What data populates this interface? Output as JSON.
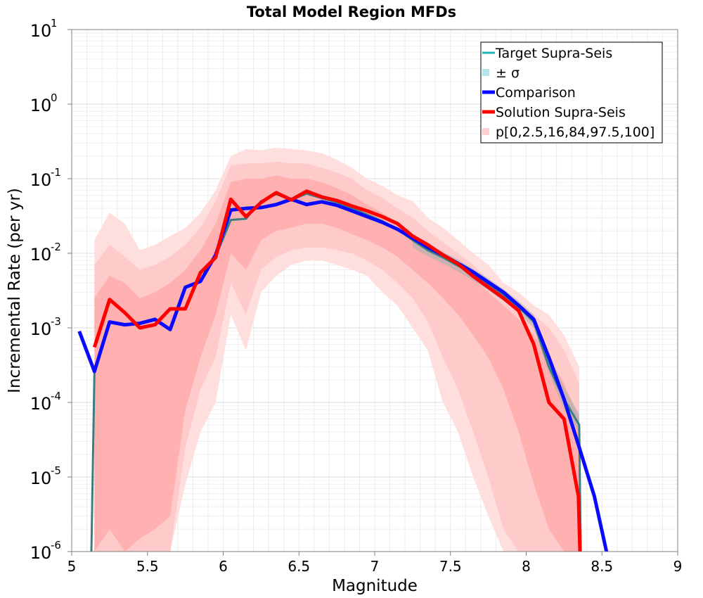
{
  "chart_data": {
    "type": "line",
    "title": "Total Model Region MFDs",
    "xlabel": "Magnitude",
    "ylabel": "Incremental Rate (per yr)",
    "xlim": [
      5,
      9
    ],
    "ylim": [
      1e-06,
      10
    ],
    "yscale": "log",
    "x_ticks": [
      5,
      5.5,
      6,
      6.5,
      7,
      7.5,
      8,
      8.5,
      9
    ],
    "x_tick_labels": [
      "5",
      "5.5",
      "6",
      "6.5",
      "7",
      "7.5",
      "8",
      "8.5",
      "9"
    ],
    "y_ticks": [
      {
        "value": 1e-06,
        "base": "10",
        "exp": "-6"
      },
      {
        "value": 1e-05,
        "base": "10",
        "exp": "-5"
      },
      {
        "value": 0.0001,
        "base": "10",
        "exp": "-4"
      },
      {
        "value": 0.001,
        "base": "10",
        "exp": "-3"
      },
      {
        "value": 0.01,
        "base": "10",
        "exp": "-2"
      },
      {
        "value": 0.1,
        "base": "10",
        "exp": "-1"
      },
      {
        "value": 1,
        "base": "10",
        "exp": "0"
      },
      {
        "value": 10,
        "base": "10",
        "exp": "1"
      }
    ],
    "grid": true,
    "legend_position": "top-right",
    "legend": [
      {
        "label": "Target Supra-Seis",
        "kind": "line",
        "color": "#1fb5b5"
      },
      {
        "label": "± σ",
        "kind": "square",
        "color": "#b4e6ec"
      },
      {
        "label": "Comparison",
        "kind": "line",
        "color": "#0a0aff"
      },
      {
        "label": "Solution Supra-Seis",
        "kind": "line",
        "color": "#ff0000"
      },
      {
        "label": "p[0,2.5,16,84,97.5,100]",
        "kind": "square",
        "color": "#ffd0d0"
      }
    ],
    "bands": [
      {
        "name": "p0-p100",
        "color": "#ffdede",
        "x": [
          5.15,
          5.25,
          5.35,
          5.45,
          5.55,
          5.65,
          5.75,
          5.85,
          5.95,
          6.05,
          6.15,
          6.25,
          6.35,
          6.45,
          6.55,
          6.65,
          6.75,
          6.85,
          6.95,
          7.05,
          7.15,
          7.25,
          7.35,
          7.45,
          7.55,
          7.65,
          7.75,
          7.85,
          7.95,
          8.05,
          8.15,
          8.25,
          8.35
        ],
        "upper": [
          0.015,
          0.035,
          0.025,
          0.011,
          0.013,
          0.017,
          0.022,
          0.035,
          0.07,
          0.2,
          0.25,
          0.24,
          0.26,
          0.25,
          0.24,
          0.22,
          0.18,
          0.14,
          0.1,
          0.08,
          0.06,
          0.05,
          0.03,
          0.022,
          0.015,
          0.01,
          0.007,
          0.004,
          0.003,
          0.002,
          0.0015,
          0.0008,
          0.0003
        ],
        "lower": [
          1e-06,
          1e-06,
          1e-06,
          1e-06,
          1e-06,
          1e-06,
          8e-06,
          4e-05,
          0.0001,
          0.0015,
          0.0005,
          0.003,
          0.005,
          0.007,
          0.008,
          0.008,
          0.007,
          0.006,
          0.005,
          0.003,
          0.002,
          0.001,
          0.0005,
          0.0001,
          4e-05,
          1e-05,
          3e-06,
          1e-06,
          1e-06,
          1e-06,
          1e-06,
          1e-06,
          1e-06
        ]
      },
      {
        "name": "p2.5-p97.5",
        "color": "#ffcaca",
        "x": [
          5.15,
          5.25,
          5.35,
          5.45,
          5.55,
          5.65,
          5.75,
          5.85,
          5.95,
          6.05,
          6.15,
          6.25,
          6.35,
          6.45,
          6.55,
          6.65,
          6.75,
          6.85,
          6.95,
          7.05,
          7.15,
          7.25,
          7.35,
          7.45,
          7.55,
          7.65,
          7.75,
          7.85,
          7.95,
          8.05,
          8.15,
          8.25,
          8.35
        ],
        "upper": [
          0.007,
          0.013,
          0.009,
          0.006,
          0.007,
          0.009,
          0.013,
          0.022,
          0.05,
          0.15,
          0.16,
          0.16,
          0.17,
          0.16,
          0.16,
          0.14,
          0.12,
          0.1,
          0.07,
          0.055,
          0.04,
          0.03,
          0.02,
          0.014,
          0.01,
          0.007,
          0.0045,
          0.003,
          0.0022,
          0.0015,
          0.001,
          0.0005,
          0.00018
        ],
        "lower": [
          1e-06,
          1e-06,
          1e-06,
          1e-06,
          1e-06,
          1e-06,
          2.5e-05,
          0.00015,
          0.0004,
          0.004,
          0.0015,
          0.006,
          0.009,
          0.011,
          0.012,
          0.012,
          0.011,
          0.01,
          0.008,
          0.006,
          0.004,
          0.0025,
          0.0012,
          0.0004,
          0.00015,
          4e-05,
          1e-05,
          2e-06,
          1e-06,
          1e-06,
          1e-06,
          1e-06,
          1e-06
        ]
      },
      {
        "name": "p16-p84",
        "color": "#ffb0b0",
        "x": [
          5.15,
          5.25,
          5.35,
          5.45,
          5.55,
          5.65,
          5.75,
          5.85,
          5.95,
          6.05,
          6.15,
          6.25,
          6.35,
          6.45,
          6.55,
          6.65,
          6.75,
          6.85,
          6.95,
          7.05,
          7.15,
          7.25,
          7.35,
          7.45,
          7.55,
          7.65,
          7.75,
          7.85,
          7.95,
          8.05,
          8.15,
          8.25,
          8.35
        ],
        "upper": [
          0.0025,
          0.005,
          0.004,
          0.0025,
          0.003,
          0.004,
          0.006,
          0.011,
          0.025,
          0.09,
          0.1,
          0.1,
          0.11,
          0.1,
          0.1,
          0.09,
          0.075,
          0.06,
          0.045,
          0.035,
          0.025,
          0.018,
          0.013,
          0.009,
          0.0065,
          0.0045,
          0.003,
          0.002,
          0.0013,
          0.0008,
          0.0004,
          0.00018,
          6e-05
        ],
        "lower": [
          1e-06,
          2e-06,
          1e-06,
          1.5e-06,
          2e-06,
          3e-06,
          8e-05,
          0.0004,
          0.0015,
          0.01,
          0.006,
          0.015,
          0.02,
          0.022,
          0.025,
          0.025,
          0.022,
          0.018,
          0.015,
          0.012,
          0.009,
          0.006,
          0.004,
          0.0025,
          0.0015,
          0.0008,
          0.0004,
          0.00015,
          4e-05,
          8e-06,
          2e-06,
          1e-06,
          1e-06
        ]
      }
    ],
    "series": [
      {
        "name": "± σ",
        "kind": "band",
        "color": "#9fb0b0",
        "x": [
          7.25,
          7.35,
          7.45,
          7.55,
          7.65,
          7.75,
          7.85,
          7.95,
          8.05,
          8.15,
          8.25,
          8.35
        ],
        "upper": [
          0.018,
          0.0135,
          0.0105,
          0.0082,
          0.0062,
          0.0046,
          0.0033,
          0.0023,
          0.0015,
          0.00045,
          0.00016,
          7e-05
        ],
        "lower": [
          0.012,
          0.0092,
          0.0073,
          0.0057,
          0.0043,
          0.0032,
          0.0023,
          0.0016,
          0.001,
          0.00025,
          8e-05,
          4e-05
        ]
      },
      {
        "name": "Target Supra-Seis",
        "kind": "line",
        "color": "#3a7f80",
        "x": [
          5.13,
          5.15,
          5.25,
          5.35,
          5.45,
          5.55,
          5.65,
          5.75,
          5.85,
          5.95,
          6.05,
          6.15,
          6.25,
          6.35,
          6.45,
          6.55,
          6.65,
          6.75,
          6.85,
          6.95,
          7.05,
          7.15,
          7.25,
          7.35,
          7.45,
          7.55,
          7.65,
          7.75,
          7.85,
          7.95,
          8.05,
          8.15,
          8.25,
          8.35,
          8.36
        ],
        "y": [
          1e-06,
          0.00026,
          0.0012,
          0.0011,
          0.00115,
          0.0013,
          0.00095,
          0.0035,
          0.0042,
          0.009,
          0.028,
          0.029,
          0.05,
          0.062,
          0.052,
          0.063,
          0.055,
          0.048,
          0.04,
          0.033,
          0.027,
          0.021,
          0.015,
          0.011,
          0.0088,
          0.0068,
          0.0052,
          0.0038,
          0.0027,
          0.0019,
          0.0012,
          0.0003,
          0.00011,
          5e-05,
          1e-06
        ]
      },
      {
        "name": "Comparison",
        "kind": "line",
        "color": "#0a0aff",
        "x": [
          5.05,
          5.15,
          5.25,
          5.35,
          5.45,
          5.55,
          5.65,
          5.75,
          5.85,
          5.95,
          6.05,
          6.15,
          6.25,
          6.35,
          6.45,
          6.55,
          6.65,
          6.75,
          6.85,
          6.95,
          7.05,
          7.15,
          7.25,
          7.35,
          7.45,
          7.55,
          7.65,
          7.75,
          7.85,
          7.95,
          8.05,
          8.15,
          8.25,
          8.35,
          8.45,
          8.53
        ],
        "y": [
          0.0009,
          0.00026,
          0.0012,
          0.0011,
          0.00115,
          0.0013,
          0.00095,
          0.0035,
          0.0042,
          0.0095,
          0.038,
          0.04,
          0.041,
          0.045,
          0.053,
          0.045,
          0.049,
          0.044,
          0.037,
          0.031,
          0.026,
          0.021,
          0.016,
          0.012,
          0.0095,
          0.0073,
          0.0056,
          0.0041,
          0.003,
          0.002,
          0.0013,
          0.0004,
          0.00011,
          2.5e-05,
          5.5e-06,
          1e-06
        ]
      },
      {
        "name": "Solution Supra-Seis",
        "kind": "line",
        "color": "#ff0000",
        "x": [
          5.15,
          5.25,
          5.35,
          5.45,
          5.55,
          5.65,
          5.75,
          5.85,
          5.95,
          6.05,
          6.15,
          6.25,
          6.35,
          6.45,
          6.55,
          6.65,
          6.75,
          6.85,
          6.95,
          7.05,
          7.15,
          7.25,
          7.35,
          7.45,
          7.55,
          7.65,
          7.75,
          7.85,
          7.95,
          8.05,
          8.15,
          8.25,
          8.345,
          8.355
        ],
        "y": [
          0.00055,
          0.0024,
          0.0016,
          0.001,
          0.0011,
          0.0018,
          0.0018,
          0.0055,
          0.0088,
          0.053,
          0.031,
          0.048,
          0.065,
          0.052,
          0.068,
          0.057,
          0.051,
          0.043,
          0.037,
          0.031,
          0.025,
          0.017,
          0.013,
          0.0095,
          0.0072,
          0.0049,
          0.0035,
          0.0025,
          0.0017,
          0.0006,
          0.0001,
          6e-05,
          5.5e-06,
          1e-06
        ]
      }
    ]
  }
}
